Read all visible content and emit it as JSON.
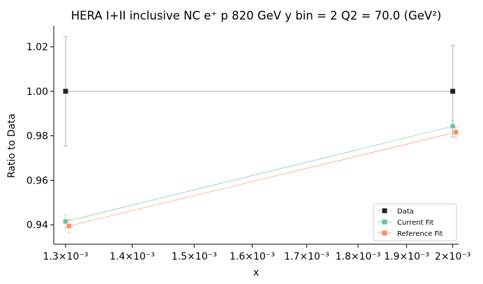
{
  "chart_data": {
    "type": "line",
    "title": "HERA I+II inclusive NC e⁺ p 820 GeV y bin = 2 Q2 = 70.0 (GeV²)",
    "xlabel": "x",
    "ylabel": "Ratio to Data",
    "xscale": "log",
    "xlim": [
      0.001283,
      0.002013
    ],
    "ylim": [
      0.9313,
      1.0294
    ],
    "x_ticks": [
      {
        "value": 0.0013,
        "label": "1.3×10⁻³"
      },
      {
        "value": 0.0014,
        "label": "1.4×10⁻³"
      },
      {
        "value": 0.0015,
        "label": "1.5×10⁻³"
      },
      {
        "value": 0.0016,
        "label": "1.6×10⁻³"
      },
      {
        "value": 0.0017,
        "label": "1.7×10⁻³"
      },
      {
        "value": 0.0018,
        "label": "1.8×10⁻³"
      },
      {
        "value": 0.0019,
        "label": "1.9×10⁻³"
      },
      {
        "value": 0.002,
        "label": "2×10⁻³"
      }
    ],
    "y_ticks": [
      {
        "value": 0.94,
        "label": "0.94"
      },
      {
        "value": 0.96,
        "label": "0.96"
      },
      {
        "value": 0.98,
        "label": "0.98"
      },
      {
        "value": 1.0,
        "label": "1.00"
      },
      {
        "value": 1.02,
        "label": "1.02"
      }
    ],
    "grid": false,
    "legend_position": "bottom-right",
    "series": [
      {
        "name": "Data",
        "color": "#222222",
        "line_color": "#c8c8c8",
        "marker": "square",
        "points": [
          {
            "x": 0.0013,
            "y": 1.0,
            "err": 0.0246
          },
          {
            "x": 0.002,
            "y": 1.0,
            "err": 0.0206
          }
        ]
      },
      {
        "name": "Current Fit",
        "color": "#66c2a5",
        "marker": "square",
        "points": [
          {
            "x": 0.0013,
            "y": 0.9415,
            "err": 0.003
          },
          {
            "x": 0.002,
            "y": 0.9843,
            "err": 0.0025
          }
        ]
      },
      {
        "name": "Reference Fit",
        "color": "#fc8d62",
        "marker": "square",
        "points": [
          {
            "x": 0.001305,
            "y": 0.9395,
            "err": 0.003
          },
          {
            "x": 0.002007,
            "y": 0.9816,
            "err": 0.0025
          }
        ]
      }
    ]
  }
}
